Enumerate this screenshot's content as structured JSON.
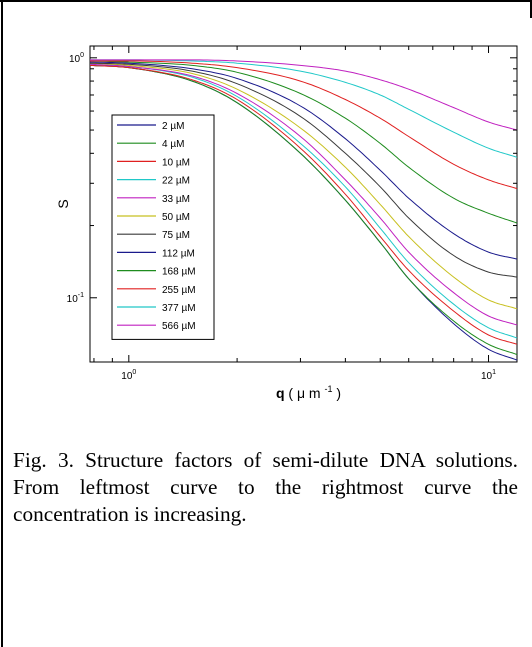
{
  "caption": "Fig. 3. Structure factors of semi-dilute DNA solutions. From leftmost curve to the rightmost curve the concentration is increasing.",
  "chart_data": {
    "type": "line",
    "title": "",
    "xlabel_main": "q",
    "xlabel_unit_open": " (",
    "xlabel_unit_mu": "μ",
    "xlabel_unit_m": " m",
    "xlabel_unit_exp": "-1",
    "xlabel_unit_close": ")",
    "ylabel": "S",
    "xscale": "log",
    "yscale": "log",
    "xlim": [
      0.78,
      12
    ],
    "ylim": [
      0.054,
      1.12
    ],
    "x_ticks": [
      {
        "base": "10",
        "exp": "0",
        "value": 1
      },
      {
        "base": "10",
        "exp": "1",
        "value": 10
      }
    ],
    "y_ticks": [
      {
        "base": "10",
        "exp": "0",
        "value": 1
      },
      {
        "base": "10",
        "exp": "-1",
        "value": 0.1
      }
    ],
    "legend_position": "left",
    "x": [
      0.78,
      1,
      1.5,
      2,
      3,
      4,
      5,
      6,
      8,
      10,
      12
    ],
    "series": [
      {
        "name": "2 µM",
        "color": "#1a1a8c",
        "values": [
          0.93,
          0.91,
          0.8,
          0.65,
          0.4,
          0.255,
          0.17,
          0.12,
          0.078,
          0.061,
          0.055
        ]
      },
      {
        "name": "4 µM",
        "color": "#1e8c1e",
        "values": [
          0.93,
          0.91,
          0.8,
          0.65,
          0.4,
          0.255,
          0.17,
          0.12,
          0.08,
          0.064,
          0.058
        ]
      },
      {
        "name": "10 µM",
        "color": "#e02020",
        "values": [
          0.93,
          0.91,
          0.81,
          0.67,
          0.42,
          0.27,
          0.18,
          0.13,
          0.088,
          0.07,
          0.064
        ]
      },
      {
        "name": "22 µM",
        "color": "#20c8c8",
        "values": [
          0.94,
          0.92,
          0.83,
          0.69,
          0.44,
          0.29,
          0.195,
          0.14,
          0.094,
          0.075,
          0.068
        ]
      },
      {
        "name": "33 µM",
        "color": "#c020c0",
        "values": [
          0.94,
          0.92,
          0.84,
          0.71,
          0.47,
          0.31,
          0.215,
          0.155,
          0.105,
          0.084,
          0.077
        ]
      },
      {
        "name": "50 µM",
        "color": "#c8c020",
        "values": [
          0.95,
          0.93,
          0.86,
          0.74,
          0.51,
          0.35,
          0.245,
          0.18,
          0.122,
          0.098,
          0.09
        ]
      },
      {
        "name": "75 µM",
        "color": "#3a3a3a",
        "values": [
          0.95,
          0.94,
          0.88,
          0.78,
          0.57,
          0.4,
          0.29,
          0.215,
          0.15,
          0.128,
          0.122
        ]
      },
      {
        "name": "112 µM",
        "color": "#1a1a8c",
        "values": [
          0.96,
          0.95,
          0.9,
          0.82,
          0.63,
          0.46,
          0.34,
          0.26,
          0.185,
          0.155,
          0.145
        ]
      },
      {
        "name": "168 µM",
        "color": "#1e8c1e",
        "values": [
          0.97,
          0.96,
          0.93,
          0.87,
          0.71,
          0.56,
          0.44,
          0.35,
          0.26,
          0.225,
          0.205
        ]
      },
      {
        "name": "255 µM",
        "color": "#e02020",
        "values": [
          0.97,
          0.97,
          0.95,
          0.91,
          0.8,
          0.67,
          0.56,
          0.47,
          0.36,
          0.31,
          0.285
        ]
      },
      {
        "name": "377 µM",
        "color": "#20c8c8",
        "values": [
          0.98,
          0.98,
          0.97,
          0.95,
          0.88,
          0.79,
          0.7,
          0.61,
          0.49,
          0.42,
          0.385
        ]
      },
      {
        "name": "566 µM",
        "color": "#c020c0",
        "values": [
          0.98,
          0.98,
          0.98,
          0.97,
          0.93,
          0.88,
          0.81,
          0.74,
          0.62,
          0.54,
          0.5
        ]
      }
    ]
  }
}
